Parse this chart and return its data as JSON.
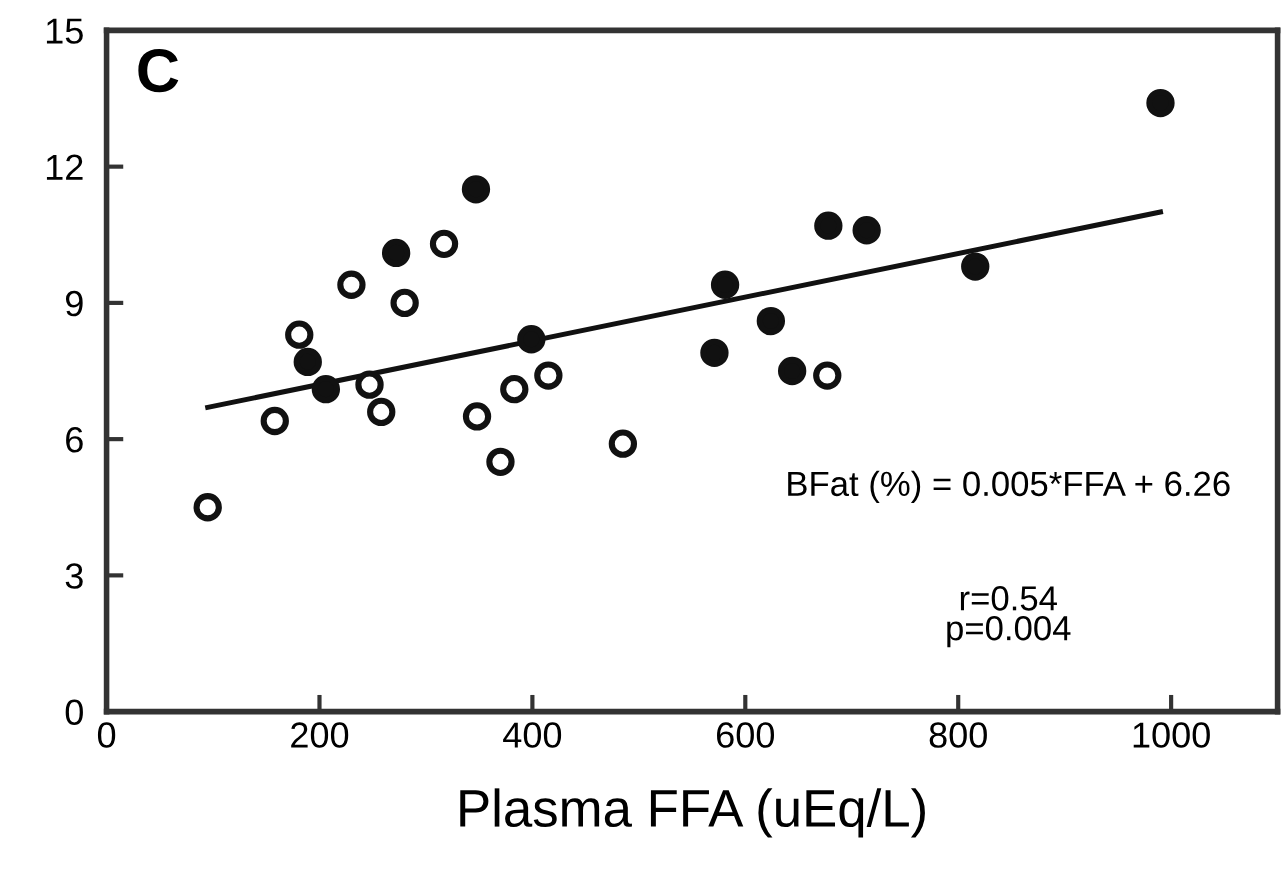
{
  "chart_data": {
    "type": "scatter",
    "title": "C",
    "xlabel": "Plasma FFA (uEq/L)",
    "xlim": [
      0,
      1100
    ],
    "xticks": [
      0,
      200,
      400,
      600,
      800,
      1000
    ],
    "ylim": [
      0,
      15
    ],
    "yticks": [
      0,
      3,
      6,
      9,
      12,
      15
    ],
    "grid": false,
    "legend": false,
    "annotations": [
      "BFat (%) = 0.005*FFA + 6.26",
      "r=0.54\np=0.004"
    ],
    "series": [
      {
        "marker": "circle",
        "color": "#ffffff",
        "x": [
          95,
          158,
          181,
          230,
          247,
          258,
          280,
          317,
          348,
          370,
          383,
          415,
          485,
          677
        ],
        "values": [
          4.5,
          6.4,
          8.3,
          9.4,
          7.2,
          6.6,
          9.0,
          10.3,
          6.5,
          5.5,
          7.1,
          7.4,
          5.9,
          7.4
        ]
      },
      {
        "marker": "circle",
        "color": "#111111",
        "x": [
          189,
          206,
          272,
          347,
          399,
          571,
          581,
          624,
          644,
          678,
          714,
          816,
          990
        ],
        "values": [
          7.7,
          7.1,
          10.1,
          11.5,
          8.2,
          7.9,
          9.4,
          8.6,
          7.5,
          10.7,
          10.6,
          9.8,
          13.4
        ]
      },
      {
        "type": "line",
        "color": "#111111",
        "x": [
          95,
          990
        ],
        "values": [
          6.7,
          11.0
        ]
      }
    ]
  }
}
